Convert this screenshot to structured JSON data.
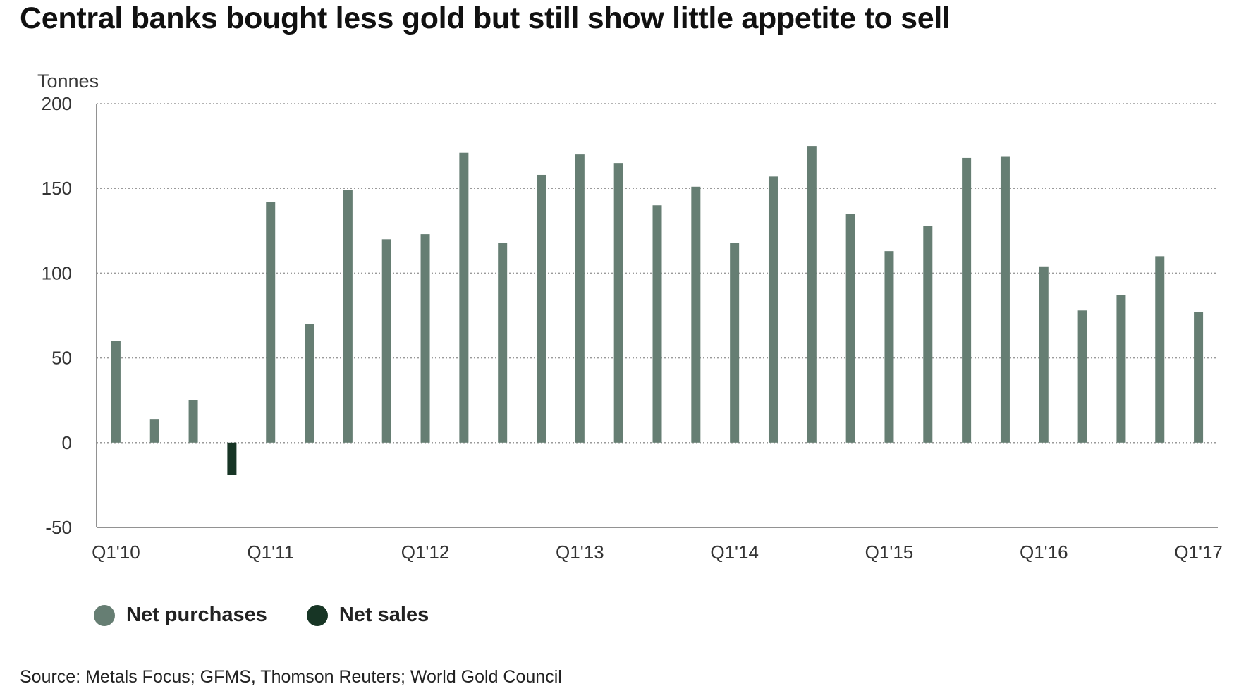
{
  "title": "Central banks bought less gold but still show little appetite to sell",
  "source": "Source: Metals Focus; GFMS, Thomson Reuters; World Gold Council",
  "legend": {
    "items": [
      {
        "label": "Net purchases",
        "color": "#667e73"
      },
      {
        "label": "Net sales",
        "color": "#173525"
      }
    ]
  },
  "chart_data": {
    "type": "bar",
    "ylabel": "Tonnes",
    "ylim": [
      -50,
      200
    ],
    "yticks": [
      200,
      150,
      100,
      50,
      0,
      -50
    ],
    "grid": true,
    "legend_position": "bottom-left",
    "categories": [
      "Q1'10",
      "Q2'10",
      "Q3'10",
      "Q4'10",
      "Q1'11",
      "Q2'11",
      "Q3'11",
      "Q4'11",
      "Q1'12",
      "Q2'12",
      "Q3'12",
      "Q4'12",
      "Q1'13",
      "Q2'13",
      "Q3'13",
      "Q4'13",
      "Q1'14",
      "Q2'14",
      "Q3'14",
      "Q4'14",
      "Q1'15",
      "Q2'15",
      "Q3'15",
      "Q4'15",
      "Q1'16",
      "Q2'16",
      "Q3'16",
      "Q4'16",
      "Q1'17"
    ],
    "xtick_labels": [
      "Q1'10",
      "Q1'11",
      "Q1'12",
      "Q1'13",
      "Q1'14",
      "Q1'15",
      "Q1'16",
      "Q1'17"
    ],
    "values": [
      60,
      14,
      25,
      -19,
      142,
      70,
      149,
      120,
      123,
      171,
      118,
      158,
      170,
      165,
      140,
      151,
      118,
      157,
      175,
      135,
      113,
      128,
      168,
      169,
      104,
      78,
      87,
      110,
      77
    ],
    "colors": {
      "positive": "#667e73",
      "negative": "#173525"
    }
  }
}
